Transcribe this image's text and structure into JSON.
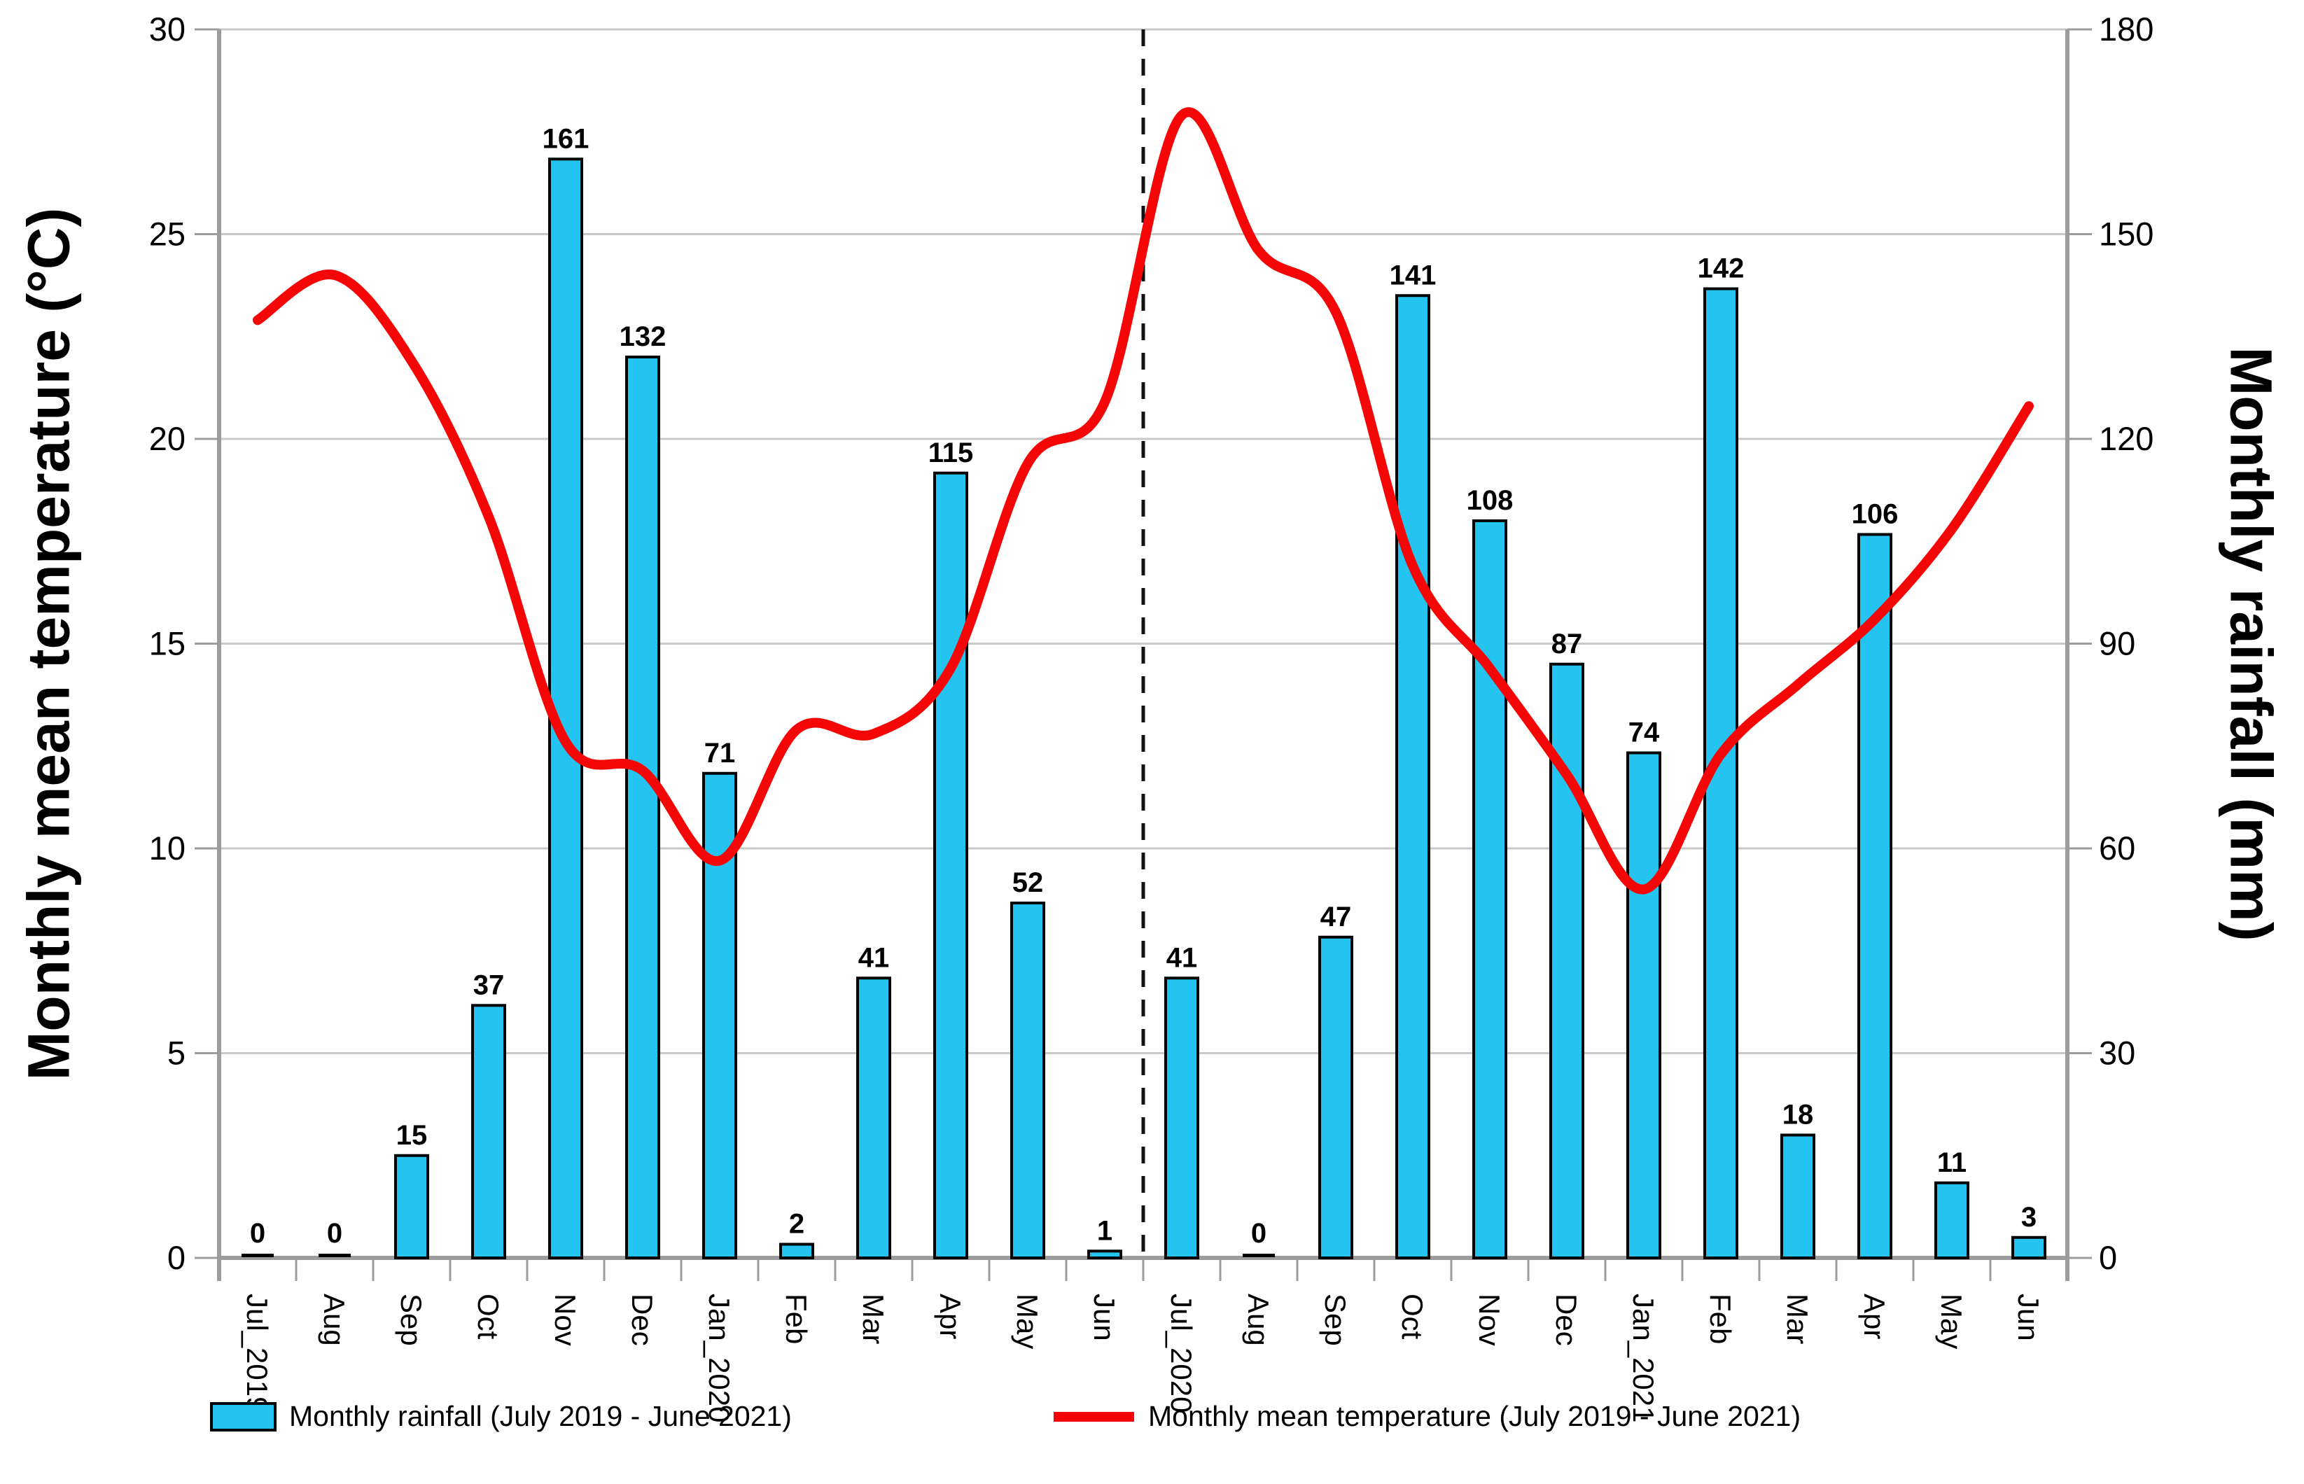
{
  "chart_data": {
    "type": "combo",
    "categories": [
      "Jul_2019",
      "Aug",
      "Sep",
      "Oct",
      "Nov",
      "Dec",
      "Jan_2020",
      "Feb",
      "Mar",
      "Apr",
      "May",
      "Jun",
      "Jul_2020",
      "Aug",
      "Sep",
      "Oct",
      "Nov",
      "Dec",
      "Jan_2021",
      "Feb",
      "Mar",
      "Apr",
      "May",
      "Jun"
    ],
    "series": [
      {
        "name": "Monthly rainfall (July 2019 - June 2021)",
        "type": "bar",
        "axis": "right",
        "color": "#25C3F0",
        "outline_color": "#000000",
        "values": [
          0,
          0,
          15,
          37,
          161,
          132,
          71,
          2,
          41,
          115,
          52,
          1,
          41,
          0,
          47,
          141,
          108,
          87,
          74,
          142,
          18,
          106,
          11,
          3
        ]
      },
      {
        "name": "Monthly mean temperature (July 2019 - June 2021)",
        "type": "line",
        "axis": "left",
        "color": "#F40606",
        "values": [
          22.9,
          24.0,
          21.9,
          18.1,
          12.6,
          11.9,
          9.7,
          12.9,
          12.8,
          14.4,
          19.4,
          20.9,
          27.9,
          24.6,
          23.1,
          16.9,
          14.4,
          11.8,
          9.0,
          12.3,
          14.0,
          15.6,
          17.8,
          20.8
        ]
      }
    ],
    "left_axis": {
      "label": "Monthly mean temperature (°C)",
      "min": 0,
      "max": 30,
      "step": 5,
      "ticks": [
        30,
        25,
        20,
        15,
        10,
        5,
        0
      ]
    },
    "right_axis": {
      "label": "Monthly rainfall (mm)",
      "min": 0,
      "max": 180,
      "step": 30,
      "ticks": [
        180,
        150,
        120,
        90,
        60,
        30,
        0
      ]
    },
    "separator": {
      "after_category_index": 11,
      "style": "dashed",
      "color": "#111111"
    },
    "grid": true,
    "gridline_color": "#C8C8C8",
    "axis_color": "#9C9C9C",
    "legend_position": "bottom"
  }
}
